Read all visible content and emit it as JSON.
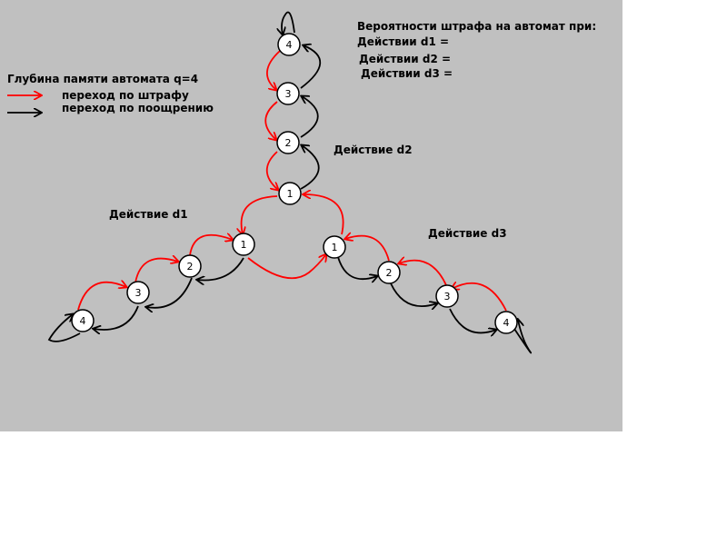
{
  "title": {
    "line1": "Вероятности штрафа на автомат при:",
    "line2": "Действии d1 =",
    "line3": "Действии d2 =",
    "line4": "Действии d3 ="
  },
  "legend": {
    "memory_depth": "Глубина памяти автомата q=4",
    "penalty_label": "переход по штрафу",
    "reward_label": "переход по поощрению",
    "penalty_color": "#ff0000",
    "reward_color": "#000000"
  },
  "actions": {
    "d1": "Действие d1",
    "d2": "Действие d2",
    "d3": "Действие d3"
  },
  "nodes": {
    "top": [
      "4",
      "3",
      "2",
      "1"
    ],
    "left": [
      "1",
      "2",
      "3",
      "4"
    ],
    "right": [
      "1",
      "2",
      "3",
      "4"
    ]
  },
  "colors": {
    "background": "#c0c0c0",
    "node_fill": "#ffffff",
    "penalty": "#ff0000",
    "reward": "#000000"
  }
}
